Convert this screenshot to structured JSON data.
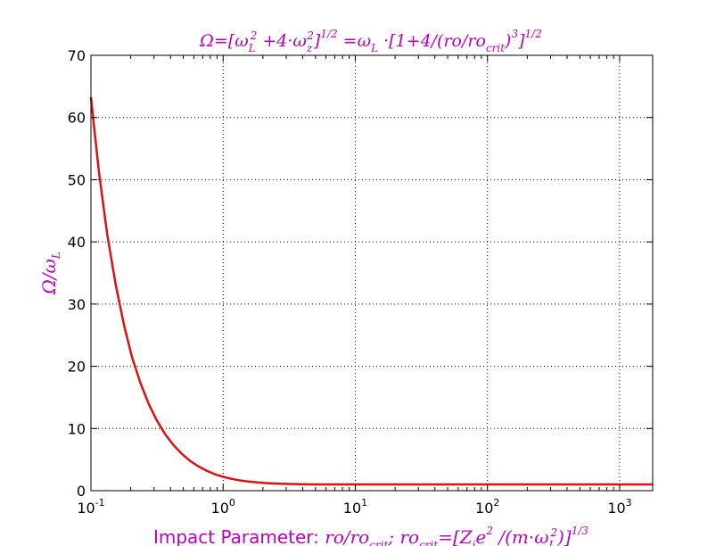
{
  "colors": {
    "curve": "#dd1111",
    "labels": "#bf00bf",
    "grid": "#000000",
    "axes": "#000000"
  },
  "chart_data": {
    "type": "line",
    "title": "Ω=[ω_L² +4·ω_z² ]^1/2 =ω_L ·[1+4/(ro/ro_crit)³ ]^1/2",
    "title_parts": {
      "p1": "Ω=[ω",
      "p1_sub": "L",
      "p1_sup": "2",
      "p2": " +4·ω",
      "p2_sub": "z",
      "p2_sup": "2",
      "p3": "]",
      "p3_sup": "1/2",
      "p4": " =ω",
      "p4_sub": "L",
      "p5": " ·[1+4/(ro/ro",
      "p5_sub": "crit",
      "p6": ")",
      "p6_sup": "3",
      "p7": "]",
      "p7_sup": "1/2"
    },
    "xlabel": "Impact Parameter: ro/ro_crit; ro_crit=[Z·e² /(m·ω_L²)]^1/3",
    "xlabel_parts": {
      "plain": "Impact Parameter: ",
      "m1": "ro/ro",
      "m1_sub": "crit",
      "m2": "; ro",
      "m2_sub": "crit",
      "m3": "=[Z",
      "m3_sub": "i",
      "m4": "e",
      "m4_sup": "2",
      "m5": " /(m·ω",
      "m5_sub": "L",
      "m5_sup": "2",
      "m6": ")]",
      "m6_sup": "1/3"
    },
    "ylabel": "Ω/ω_L",
    "ylabel_parts": {
      "main": "Ω/ω",
      "sub": "L"
    },
    "xscale": "log",
    "xlim": [
      0.1,
      1778
    ],
    "ylim": [
      0,
      70
    ],
    "grid": true,
    "xticks": [
      {
        "value": 0.1,
        "base": "10",
        "exp": "-1"
      },
      {
        "value": 1,
        "base": "10",
        "exp": "0"
      },
      {
        "value": 10,
        "base": "10",
        "exp": "1"
      },
      {
        "value": 100,
        "base": "10",
        "exp": "2"
      },
      {
        "value": 1000,
        "base": "10",
        "exp": "3"
      }
    ],
    "yticks": [
      {
        "value": 0,
        "label": "0"
      },
      {
        "value": 10,
        "label": "10"
      },
      {
        "value": 20,
        "label": "20"
      },
      {
        "value": 30,
        "label": "30"
      },
      {
        "value": 40,
        "label": "40"
      },
      {
        "value": 50,
        "label": "50"
      },
      {
        "value": 60,
        "label": "60"
      },
      {
        "value": 70,
        "label": "70"
      }
    ],
    "series": [
      {
        "x": [
          0.1,
          0.115,
          0.133,
          0.154,
          0.178,
          0.205,
          0.237,
          0.274,
          0.316,
          0.365,
          0.422,
          0.487,
          0.562,
          0.649,
          0.75,
          0.866,
          1.0,
          1.155,
          1.334,
          1.54,
          1.778,
          2.054,
          2.371,
          2.738,
          3.162,
          4.217,
          5.623,
          7.499,
          10,
          17.78,
          31.62,
          56.23,
          100,
          177.8,
          316.2,
          562.3,
          1000,
          1778
        ],
        "y": [
          63.25,
          51.2,
          41.1,
          33.1,
          26.6,
          21.4,
          17.3,
          13.9,
          11.25,
          9.06,
          7.31,
          5.92,
          4.8,
          3.91,
          3.21,
          2.65,
          2.24,
          1.91,
          1.66,
          1.48,
          1.34,
          1.24,
          1.17,
          1.11,
          1.08,
          1.03,
          1.01,
          1.005,
          1.002,
          1.0,
          1.0,
          1.0,
          1.0,
          1.0,
          1.0,
          1.0,
          1.0,
          1.0
        ]
      }
    ]
  }
}
